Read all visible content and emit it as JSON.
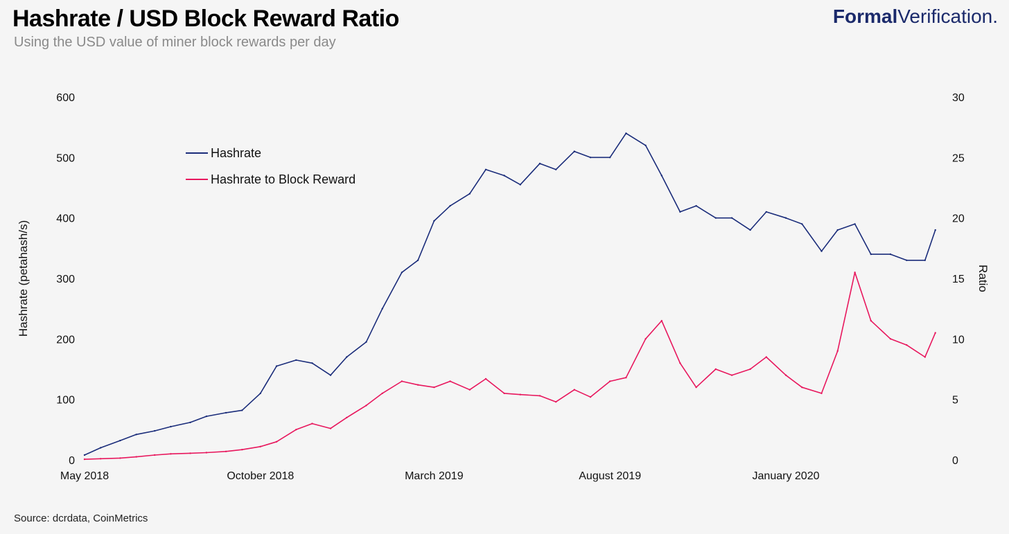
{
  "header": {
    "title": "Hashrate / USD Block Reward Ratio",
    "subtitle": "Using the USD value of miner block rewards per day",
    "brand_bold": "Formal",
    "brand_light": "Verification."
  },
  "footer": {
    "source": "Source: dcrdata, CoinMetrics"
  },
  "colors": {
    "hashrate": "#1a2c7a",
    "ratio": "#e8175d",
    "brand": "#1b2a6b"
  },
  "chart_data": {
    "type": "line",
    "title": "Hashrate / USD Block Reward Ratio",
    "subtitle": "Using the USD value of miner block rewards per day",
    "xlabel": "",
    "ylabel_left": "Hashrate (petahash/s)",
    "ylabel_right": "Ratio",
    "x_tick_labels": [
      "May 2018",
      "October 2018",
      "March 2019",
      "August 2019",
      "January 2020"
    ],
    "x_ticks": [
      "2018-05-01",
      "2018-10-01",
      "2019-03-01",
      "2019-08-01",
      "2020-01-01"
    ],
    "xlim": [
      "2018-05-01",
      "2020-05-15"
    ],
    "ylim_left": [
      0,
      600
    ],
    "ylim_right": [
      0,
      30
    ],
    "y_ticks_left": [
      0,
      100,
      200,
      300,
      400,
      500,
      600
    ],
    "y_ticks_right": [
      0,
      5,
      10,
      15,
      20,
      25,
      30
    ],
    "legend_position": "upper-left",
    "grid": false,
    "series": [
      {
        "name": "Hashrate",
        "axis": "left",
        "x": [
          "2018-05-01",
          "2018-05-15",
          "2018-06-01",
          "2018-06-15",
          "2018-07-01",
          "2018-07-15",
          "2018-08-01",
          "2018-08-15",
          "2018-09-01",
          "2018-09-15",
          "2018-10-01",
          "2018-10-15",
          "2018-11-01",
          "2018-11-15",
          "2018-12-01",
          "2018-12-15",
          "2019-01-01",
          "2019-01-15",
          "2019-02-01",
          "2019-02-15",
          "2019-03-01",
          "2019-03-15",
          "2019-04-01",
          "2019-04-15",
          "2019-05-01",
          "2019-05-15",
          "2019-06-01",
          "2019-06-15",
          "2019-07-01",
          "2019-07-15",
          "2019-08-01",
          "2019-08-15",
          "2019-09-01",
          "2019-09-15",
          "2019-10-01",
          "2019-10-15",
          "2019-11-01",
          "2019-11-15",
          "2019-12-01",
          "2019-12-15",
          "2020-01-01",
          "2020-01-15",
          "2020-02-01",
          "2020-02-15",
          "2020-03-01",
          "2020-03-15",
          "2020-04-01",
          "2020-04-15",
          "2020-05-01",
          "2020-05-10"
        ],
        "values": [
          8,
          20,
          32,
          42,
          48,
          55,
          62,
          72,
          78,
          82,
          110,
          155,
          165,
          160,
          140,
          170,
          195,
          250,
          310,
          330,
          395,
          420,
          440,
          480,
          470,
          455,
          490,
          480,
          510,
          500,
          500,
          540,
          520,
          470,
          410,
          420,
          400,
          400,
          380,
          410,
          400,
          390,
          345,
          380,
          390,
          340,
          340,
          330,
          330,
          380
        ]
      },
      {
        "name": "Hashrate to Block Reward",
        "axis": "right",
        "x": [
          "2018-05-01",
          "2018-05-15",
          "2018-06-01",
          "2018-06-15",
          "2018-07-01",
          "2018-07-15",
          "2018-08-01",
          "2018-08-15",
          "2018-09-01",
          "2018-09-15",
          "2018-10-01",
          "2018-10-15",
          "2018-11-01",
          "2018-11-15",
          "2018-12-01",
          "2018-12-15",
          "2019-01-01",
          "2019-01-15",
          "2019-02-01",
          "2019-02-15",
          "2019-03-01",
          "2019-03-15",
          "2019-04-01",
          "2019-04-15",
          "2019-05-01",
          "2019-05-15",
          "2019-06-01",
          "2019-06-15",
          "2019-07-01",
          "2019-07-15",
          "2019-08-01",
          "2019-08-15",
          "2019-09-01",
          "2019-09-15",
          "2019-10-01",
          "2019-10-15",
          "2019-11-01",
          "2019-11-15",
          "2019-12-01",
          "2019-12-15",
          "2020-01-01",
          "2020-01-15",
          "2020-02-01",
          "2020-02-15",
          "2020-03-01",
          "2020-03-15",
          "2020-04-01",
          "2020-04-15",
          "2020-05-01",
          "2020-05-10"
        ],
        "values": [
          0.05,
          0.1,
          0.15,
          0.25,
          0.4,
          0.5,
          0.55,
          0.6,
          0.7,
          0.85,
          1.1,
          1.5,
          2.5,
          3.0,
          2.6,
          3.5,
          4.5,
          5.5,
          6.5,
          6.2,
          6.0,
          6.5,
          5.8,
          6.7,
          5.5,
          5.4,
          5.3,
          4.8,
          5.8,
          5.2,
          6.5,
          6.8,
          10.0,
          11.5,
          8.0,
          6.0,
          7.5,
          7.0,
          7.5,
          8.5,
          7.0,
          6.0,
          5.5,
          9.0,
          15.5,
          11.5,
          10.0,
          9.5,
          8.5,
          10.5
        ]
      }
    ]
  }
}
